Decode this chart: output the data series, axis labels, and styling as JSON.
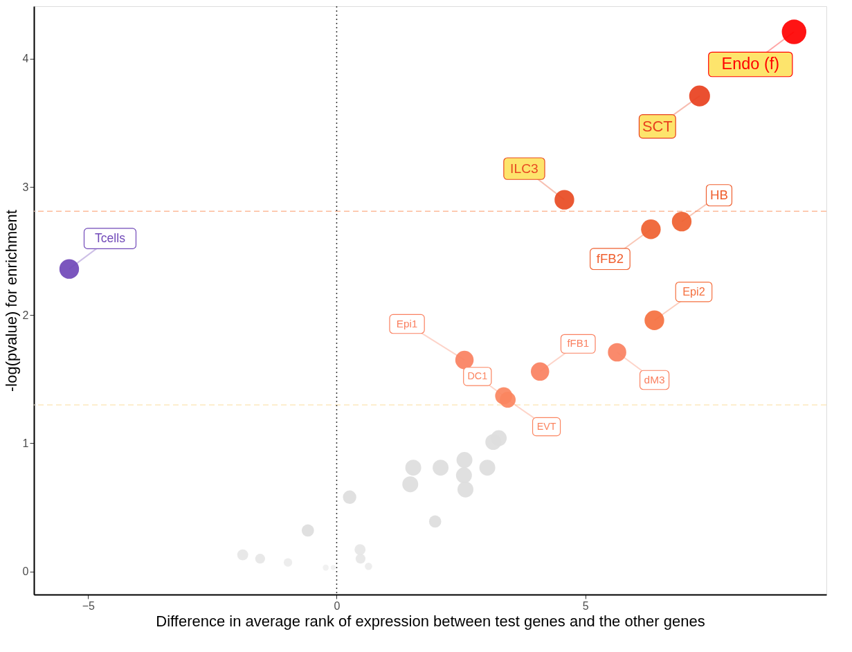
{
  "chart_data": {
    "type": "bubble",
    "xlabel": "Difference in average rank of expression between test genes and the other genes",
    "ylabel": "-log(pvalue) for enrichment",
    "x": [
      9.2,
      7.3,
      4.58,
      6.94,
      6.32,
      -5.38,
      6.39,
      2.57,
      5.64,
      4.09,
      3.36,
      3.44,
      3.26,
      3.15,
      2.57,
      2.56,
      2.59,
      1.54,
      2.09,
      3.03,
      1.48,
      0.26,
      1.98,
      -0.58,
      0.47,
      0.48,
      -1.89,
      -1.54,
      -0.98,
      0.64,
      -0.22,
      -0.07
    ],
    "values": [
      4.21,
      3.71,
      2.9,
      2.73,
      2.67,
      2.36,
      1.96,
      1.65,
      1.71,
      1.56,
      1.37,
      1.34,
      1.04,
      1.01,
      0.87,
      0.75,
      0.64,
      0.81,
      0.81,
      0.81,
      0.68,
      0.58,
      0.39,
      0.32,
      0.17,
      0.1,
      0.13,
      0.1,
      0.07,
      0.04,
      0.03,
      0.03
    ],
    "sizes": [
      1,
      0.72,
      0.64,
      0.64,
      0.64,
      0.64,
      0.64,
      0.56,
      0.56,
      0.56,
      0.49,
      0.42,
      0.42,
      0.42,
      0.42,
      0.42,
      0.42,
      0.42,
      0.42,
      0.42,
      0.42,
      0.3,
      0.25,
      0.25,
      0.2,
      0.16,
      0.2,
      0.16,
      0.12,
      0.09,
      0.06,
      0.04
    ],
    "colors": [
      "#ff0000",
      "#e8401e",
      "#e84a22",
      "#ef5f2f",
      "#ef5f2f",
      "#7048b8",
      "#f5703f",
      "#fa8060",
      "#fa8060",
      "#fa8060",
      "#fb8560",
      "#fb8560",
      "#dddddd",
      "#dddddd",
      "#dddddd",
      "#dddddd",
      "#dddddd",
      "#dddddd",
      "#dddddd",
      "#dddddd",
      "#dddddd",
      "#dddddd",
      "#dddddd",
      "#dddddd",
      "#e6e6e6",
      "#e6e6e6",
      "#e6e6e6",
      "#e6e6e6",
      "#ebebeb",
      "#ebebeb",
      "#f0f0f0",
      "#f0f0f0"
    ],
    "marker": "circle",
    "xlim": [
      -6.09,
      9.85
    ],
    "ylim": [
      -0.18,
      4.41
    ],
    "xticks": [
      -5,
      0,
      5
    ],
    "yticks": [
      0,
      1,
      2,
      3,
      4
    ],
    "grid": false,
    "ref_lines": [
      {
        "axis": "y",
        "value": 2.81,
        "color": "#fdbb9b",
        "line_style": "dashed"
      },
      {
        "axis": "y",
        "value": 1.3,
        "color": "#fde9bf",
        "line_style": "dashed"
      },
      {
        "axis": "x",
        "value": 0,
        "color": "#333333",
        "line_style": "dotted"
      }
    ],
    "annotations": [
      {
        "text": "Endo (f)",
        "x": 9.2,
        "y": 4.21
      },
      {
        "text": "SCT",
        "x": 7.3,
        "y": 3.71
      },
      {
        "text": "ILC3",
        "x": 4.58,
        "y": 2.9
      },
      {
        "text": "HB",
        "x": 6.94,
        "y": 2.73
      },
      {
        "text": "fFB2",
        "x": 6.32,
        "y": 2.67
      },
      {
        "text": "Tcells",
        "x": -5.38,
        "y": 2.36
      },
      {
        "text": "Epi2",
        "x": 6.39,
        "y": 1.96
      },
      {
        "text": "Epi1",
        "x": 2.57,
        "y": 1.65
      },
      {
        "text": "dM3",
        "x": 5.64,
        "y": 1.71
      },
      {
        "text": "fFB1",
        "x": 4.09,
        "y": 1.56
      },
      {
        "text": "DC1",
        "x": 3.36,
        "y": 1.37
      },
      {
        "text": "EVT",
        "x": 3.44,
        "y": 1.34
      }
    ]
  }
}
